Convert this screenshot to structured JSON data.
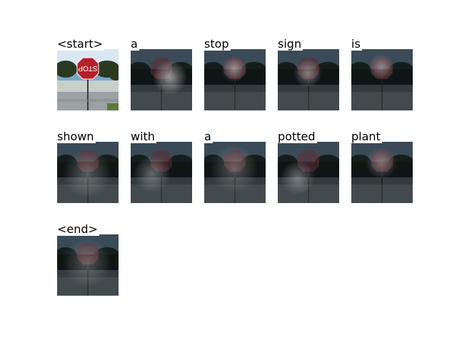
{
  "tokens": [
    "<start>",
    "a",
    "stop",
    "sign",
    "is",
    "shown",
    "with",
    "a",
    "potted",
    "plant",
    "<end>"
  ],
  "base_image_subject": "stop sign with trees and sidewalk",
  "stop_sign_text": "STOP",
  "colors": {
    "background": "#ffffff",
    "overlay_dark": "#0f1418",
    "sky": "#7aa6c9",
    "stop_sign": "#b5202a"
  }
}
